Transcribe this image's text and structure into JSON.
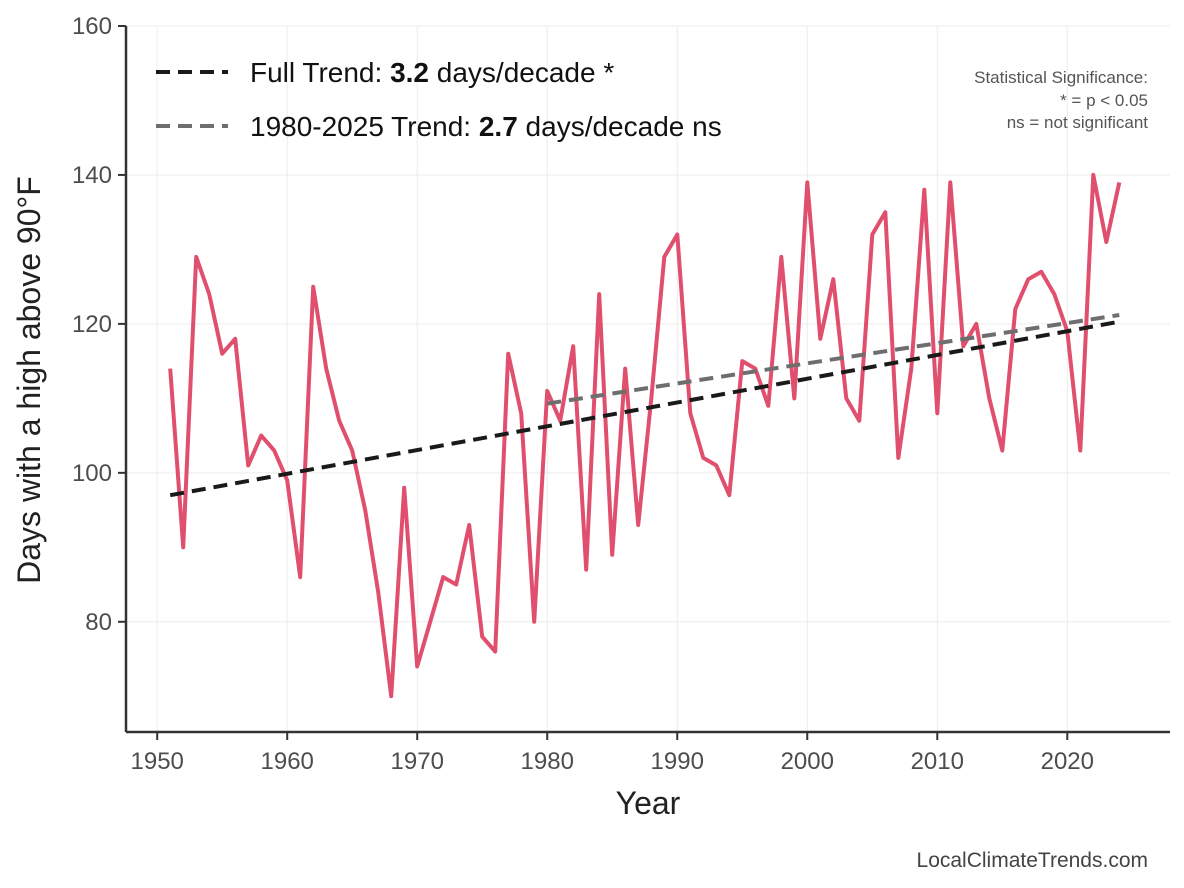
{
  "chart_data": {
    "type": "line",
    "xlabel": "Year",
    "ylabel": "Days with a high above 90°F",
    "xlim": [
      1947.6,
      2027.9
    ],
    "ylim": [
      65.2,
      160
    ],
    "x_ticks": [
      1950,
      1960,
      1970,
      1980,
      1990,
      2000,
      2010,
      2020
    ],
    "y_ticks": [
      80,
      100,
      120,
      140,
      160
    ],
    "grid": true,
    "series": [
      {
        "color": "#e0506e",
        "x": [
          1951,
          1952,
          1953,
          1954,
          1955,
          1956,
          1957,
          1958,
          1959,
          1960,
          1961,
          1962,
          1963,
          1964,
          1965,
          1966,
          1967,
          1968,
          1969,
          1970,
          1971,
          1972,
          1973,
          1974,
          1975,
          1976,
          1977,
          1978,
          1979,
          1980,
          1981,
          1982,
          1983,
          1984,
          1985,
          1986,
          1987,
          1988,
          1989,
          1990,
          1991,
          1992,
          1993,
          1994,
          1995,
          1996,
          1997,
          1998,
          1999,
          2000,
          2001,
          2002,
          2003,
          2004,
          2005,
          2006,
          2007,
          2008,
          2009,
          2010,
          2011,
          2012,
          2013,
          2014,
          2015,
          2016,
          2017,
          2018,
          2019,
          2020,
          2021,
          2022,
          2023,
          2024
        ],
        "values": [
          114,
          90,
          129,
          124,
          116,
          118,
          101,
          105,
          103,
          99,
          86,
          125,
          114,
          107,
          103,
          95,
          84,
          70,
          98,
          74,
          80,
          86,
          85,
          93,
          78,
          76,
          116,
          108,
          80,
          111,
          107,
          117,
          87,
          124,
          89,
          114,
          93,
          110,
          129,
          132,
          108,
          102,
          101,
          97,
          115,
          114,
          109,
          129,
          110,
          139,
          118,
          126,
          110,
          107,
          132,
          135,
          102,
          114,
          138,
          108,
          139,
          117,
          120,
          110,
          103,
          122,
          126,
          127,
          124,
          119,
          103,
          140,
          131,
          139
        ]
      },
      {
        "name": "Full Trend",
        "style": "dashed",
        "color": "#1a1a1a",
        "x": [
          1951,
          2024
        ],
        "values": [
          97.0,
          120.3
        ]
      },
      {
        "name": "1980-2025 Trend",
        "style": "dashed",
        "color": "#6e6e6e",
        "x": [
          1980,
          2024
        ],
        "values": [
          109.3,
          121.2
        ]
      }
    ],
    "legend": {
      "placement": "top-left",
      "entries": [
        {
          "prefix": "Full Trend: ",
          "value": "3.2",
          "suffix": " days/decade *",
          "color": "#1a1a1a"
        },
        {
          "prefix": "1980-2025 Trend: ",
          "value": "2.7",
          "suffix": " days/decade ns",
          "color": "#6e6e6e"
        }
      ]
    },
    "significance_note": {
      "placement": "top-right",
      "lines": [
        "Statistical Significance:",
        "* = p < 0.05",
        "ns = not significant"
      ]
    }
  },
  "credit": "LocalClimateTrends.com"
}
